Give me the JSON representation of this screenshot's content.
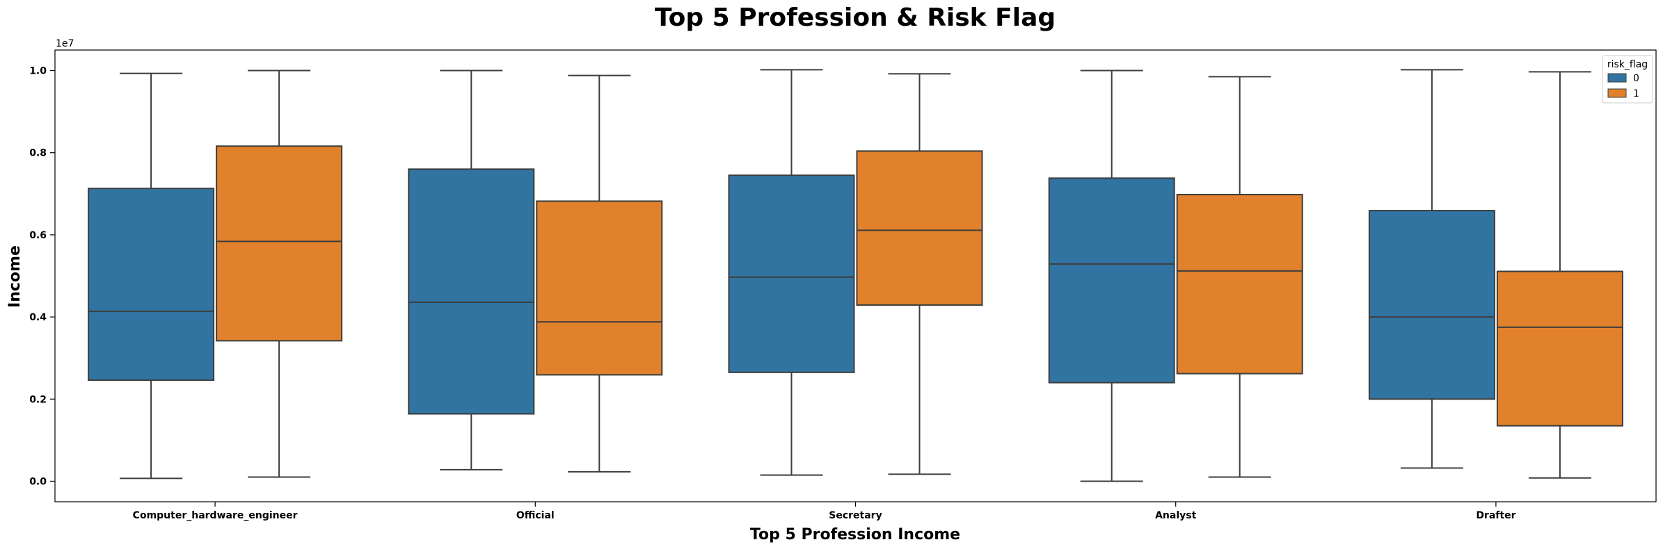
{
  "chart_data": {
    "type": "box",
    "title": "Top 5 Profession & Risk Flag",
    "xlabel": "Top 5 Profession Income",
    "ylabel": "Income",
    "y_offset_label": "1e7",
    "ylim": [
      -0.05,
      1.05
    ],
    "yticks": [
      0.0,
      0.2,
      0.4,
      0.6,
      0.8,
      1.0
    ],
    "ytick_labels": [
      "0.0",
      "0.2",
      "0.4",
      "0.6",
      "0.8",
      "1.0"
    ],
    "categories": [
      "Computer_hardware_engineer",
      "Official",
      "Secretary",
      "Analyst",
      "Drafter"
    ],
    "legend": {
      "title": "risk_flag",
      "position": "top-right",
      "entries": [
        {
          "label": "0",
          "color": "#3274a1"
        },
        {
          "label": "1",
          "color": "#e1812c"
        }
      ]
    },
    "series": [
      {
        "name": "0",
        "color": "#3274a1",
        "boxes": [
          {
            "whisker_low": 0.007,
            "q1": 0.246,
            "median": 0.414,
            "q3": 0.713,
            "whisker_high": 0.993
          },
          {
            "whisker_low": 0.028,
            "q1": 0.164,
            "median": 0.436,
            "q3": 0.76,
            "whisker_high": 1.0
          },
          {
            "whisker_low": 0.015,
            "q1": 0.265,
            "median": 0.497,
            "q3": 0.745,
            "whisker_high": 1.002
          },
          {
            "whisker_low": 0.0,
            "q1": 0.24,
            "median": 0.529,
            "q3": 0.738,
            "whisker_high": 1.0
          },
          {
            "whisker_low": 0.032,
            "q1": 0.2,
            "median": 0.4,
            "q3": 0.659,
            "whisker_high": 1.002
          }
        ]
      },
      {
        "name": "1",
        "color": "#e1812c",
        "boxes": [
          {
            "whisker_low": 0.01,
            "q1": 0.342,
            "median": 0.584,
            "q3": 0.816,
            "whisker_high": 1.0
          },
          {
            "whisker_low": 0.023,
            "q1": 0.259,
            "median": 0.388,
            "q3": 0.682,
            "whisker_high": 0.988
          },
          {
            "whisker_low": 0.017,
            "q1": 0.429,
            "median": 0.611,
            "q3": 0.804,
            "whisker_high": 0.992
          },
          {
            "whisker_low": 0.01,
            "q1": 0.262,
            "median": 0.512,
            "q3": 0.698,
            "whisker_high": 0.985
          },
          {
            "whisker_low": 0.008,
            "q1": 0.135,
            "median": 0.375,
            "q3": 0.511,
            "whisker_high": 0.997
          }
        ]
      }
    ]
  }
}
